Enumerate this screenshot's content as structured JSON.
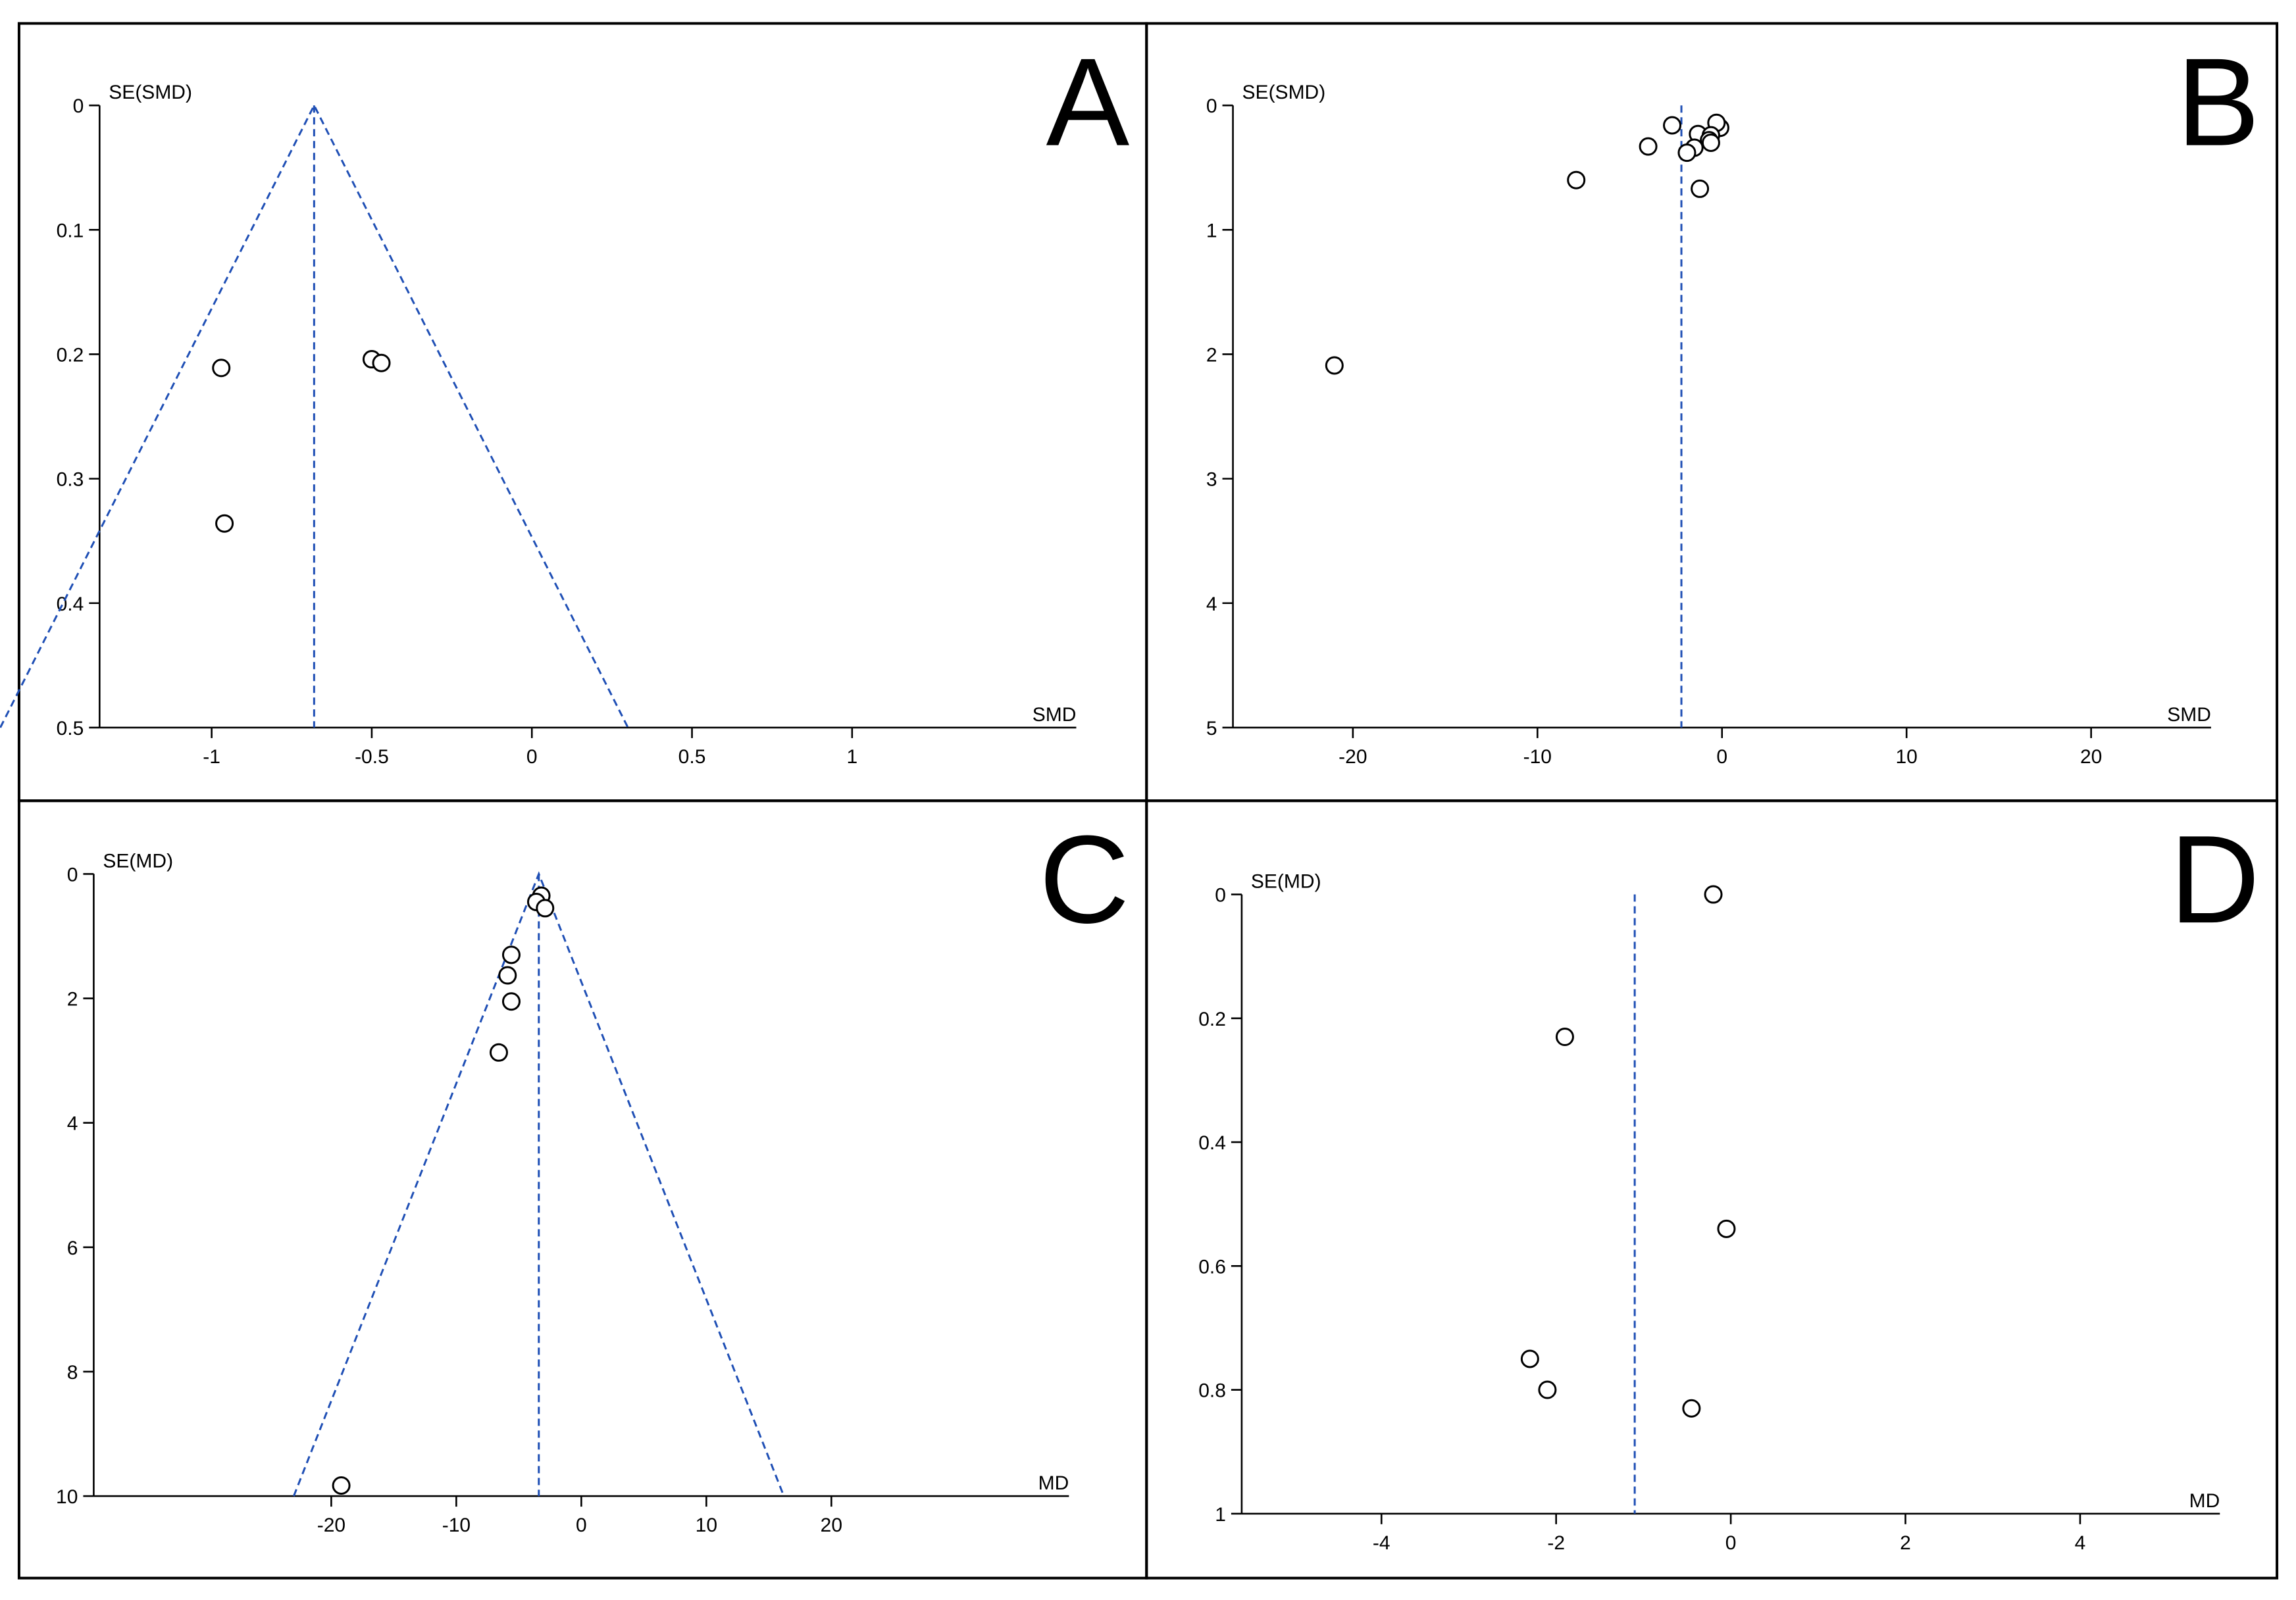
{
  "figure": {
    "colors": {
      "border": "#000000",
      "axis": "#000000",
      "funnel": "#1f4fb5",
      "marker_stroke": "#000000",
      "marker_fill": "#ffffff"
    }
  },
  "chart_data": [
    {
      "id": "A",
      "type": "scatter",
      "subtype": "funnel",
      "panel_label": "A",
      "xlabel": "SMD",
      "ylabel": "SE(SMD)",
      "xlim": [
        -1.35,
        1.7
      ],
      "ylim": [
        0,
        0.5
      ],
      "y_inverted": true,
      "xticks": [
        -1,
        -0.5,
        0,
        0.5,
        1
      ],
      "xtick_labels": [
        "-1",
        "-0.5",
        "0",
        "0.5",
        "1"
      ],
      "yticks": [
        0,
        0.1,
        0.2,
        0.3,
        0.4,
        0.5
      ],
      "ytick_labels": [
        "0",
        "0.1",
        "0.2",
        "0.3",
        "0.4",
        "0.5"
      ],
      "pooled_estimate": -0.68,
      "funnel": true,
      "points": [
        {
          "x": -0.97,
          "y": 0.211
        },
        {
          "x": -0.5,
          "y": 0.204
        },
        {
          "x": -0.47,
          "y": 0.207
        },
        {
          "x": -0.96,
          "y": 0.336
        }
      ]
    },
    {
      "id": "B",
      "type": "scatter",
      "subtype": "funnel",
      "panel_label": "B",
      "xlabel": "SMD",
      "ylabel": "SE(SMD)",
      "xlim": [
        -26.5,
        26.5
      ],
      "ylim": [
        0,
        5
      ],
      "y_inverted": true,
      "xticks": [
        -20,
        -10,
        0,
        10,
        20
      ],
      "xtick_labels": [
        "-20",
        "-10",
        "0",
        "10",
        "20"
      ],
      "yticks": [
        0,
        1,
        2,
        3,
        4,
        5
      ],
      "ytick_labels": [
        "0",
        "1",
        "2",
        "3",
        "4",
        "5"
      ],
      "pooled_estimate": -2.2,
      "funnel": false,
      "points": [
        {
          "x": -2.7,
          "y": 0.16
        },
        {
          "x": -0.1,
          "y": 0.18
        },
        {
          "x": -0.3,
          "y": 0.14
        },
        {
          "x": -1.3,
          "y": 0.23
        },
        {
          "x": -0.6,
          "y": 0.24
        },
        {
          "x": -0.7,
          "y": 0.28
        },
        {
          "x": -0.6,
          "y": 0.3
        },
        {
          "x": -4.0,
          "y": 0.33
        },
        {
          "x": -1.5,
          "y": 0.34
        },
        {
          "x": -1.9,
          "y": 0.38
        },
        {
          "x": -7.9,
          "y": 0.6
        },
        {
          "x": -1.2,
          "y": 0.67
        },
        {
          "x": -21.0,
          "y": 2.09
        }
      ]
    },
    {
      "id": "C",
      "type": "scatter",
      "subtype": "funnel",
      "panel_label": "C",
      "xlabel": "MD",
      "ylabel": "SE(MD)",
      "xlim": [
        -39,
        39
      ],
      "ylim": [
        0,
        10
      ],
      "y_inverted": true,
      "xticks": [
        -20,
        -10,
        0,
        10,
        20
      ],
      "xtick_labels": [
        "-20",
        "-10",
        "0",
        "10",
        "20"
      ],
      "yticks": [
        0,
        2,
        4,
        6,
        8,
        10
      ],
      "ytick_labels": [
        "0",
        "2",
        "4",
        "6",
        "8",
        "10"
      ],
      "pooled_estimate": -3.4,
      "funnel": true,
      "points": [
        {
          "x": -3.2,
          "y": 0.35
        },
        {
          "x": -3.6,
          "y": 0.45
        },
        {
          "x": -2.9,
          "y": 0.55
        },
        {
          "x": -5.6,
          "y": 1.3
        },
        {
          "x": -5.9,
          "y": 1.63
        },
        {
          "x": -5.6,
          "y": 2.05
        },
        {
          "x": -6.6,
          "y": 2.87
        },
        {
          "x": -19.2,
          "y": 9.83
        }
      ]
    },
    {
      "id": "D",
      "type": "scatter",
      "subtype": "funnel",
      "panel_label": "D",
      "xlabel": "MD",
      "ylabel": "SE(MD)",
      "xlim": [
        -5.6,
        5.6
      ],
      "ylim": [
        0,
        1
      ],
      "y_inverted": true,
      "xticks": [
        -4,
        -2,
        0,
        2,
        4
      ],
      "xtick_labels": [
        "-4",
        "-2",
        "0",
        "2",
        "4"
      ],
      "yticks": [
        0,
        0.2,
        0.4,
        0.6,
        0.8,
        1
      ],
      "ytick_labels": [
        "0",
        "0.2",
        "0.4",
        "0.6",
        "0.8",
        "1"
      ],
      "pooled_estimate": -1.1,
      "funnel": false,
      "points": [
        {
          "x": -0.2,
          "y": 0.0
        },
        {
          "x": -1.9,
          "y": 0.23
        },
        {
          "x": -0.05,
          "y": 0.54
        },
        {
          "x": -2.3,
          "y": 0.75
        },
        {
          "x": -2.1,
          "y": 0.8
        },
        {
          "x": -0.45,
          "y": 0.83
        }
      ]
    }
  ]
}
